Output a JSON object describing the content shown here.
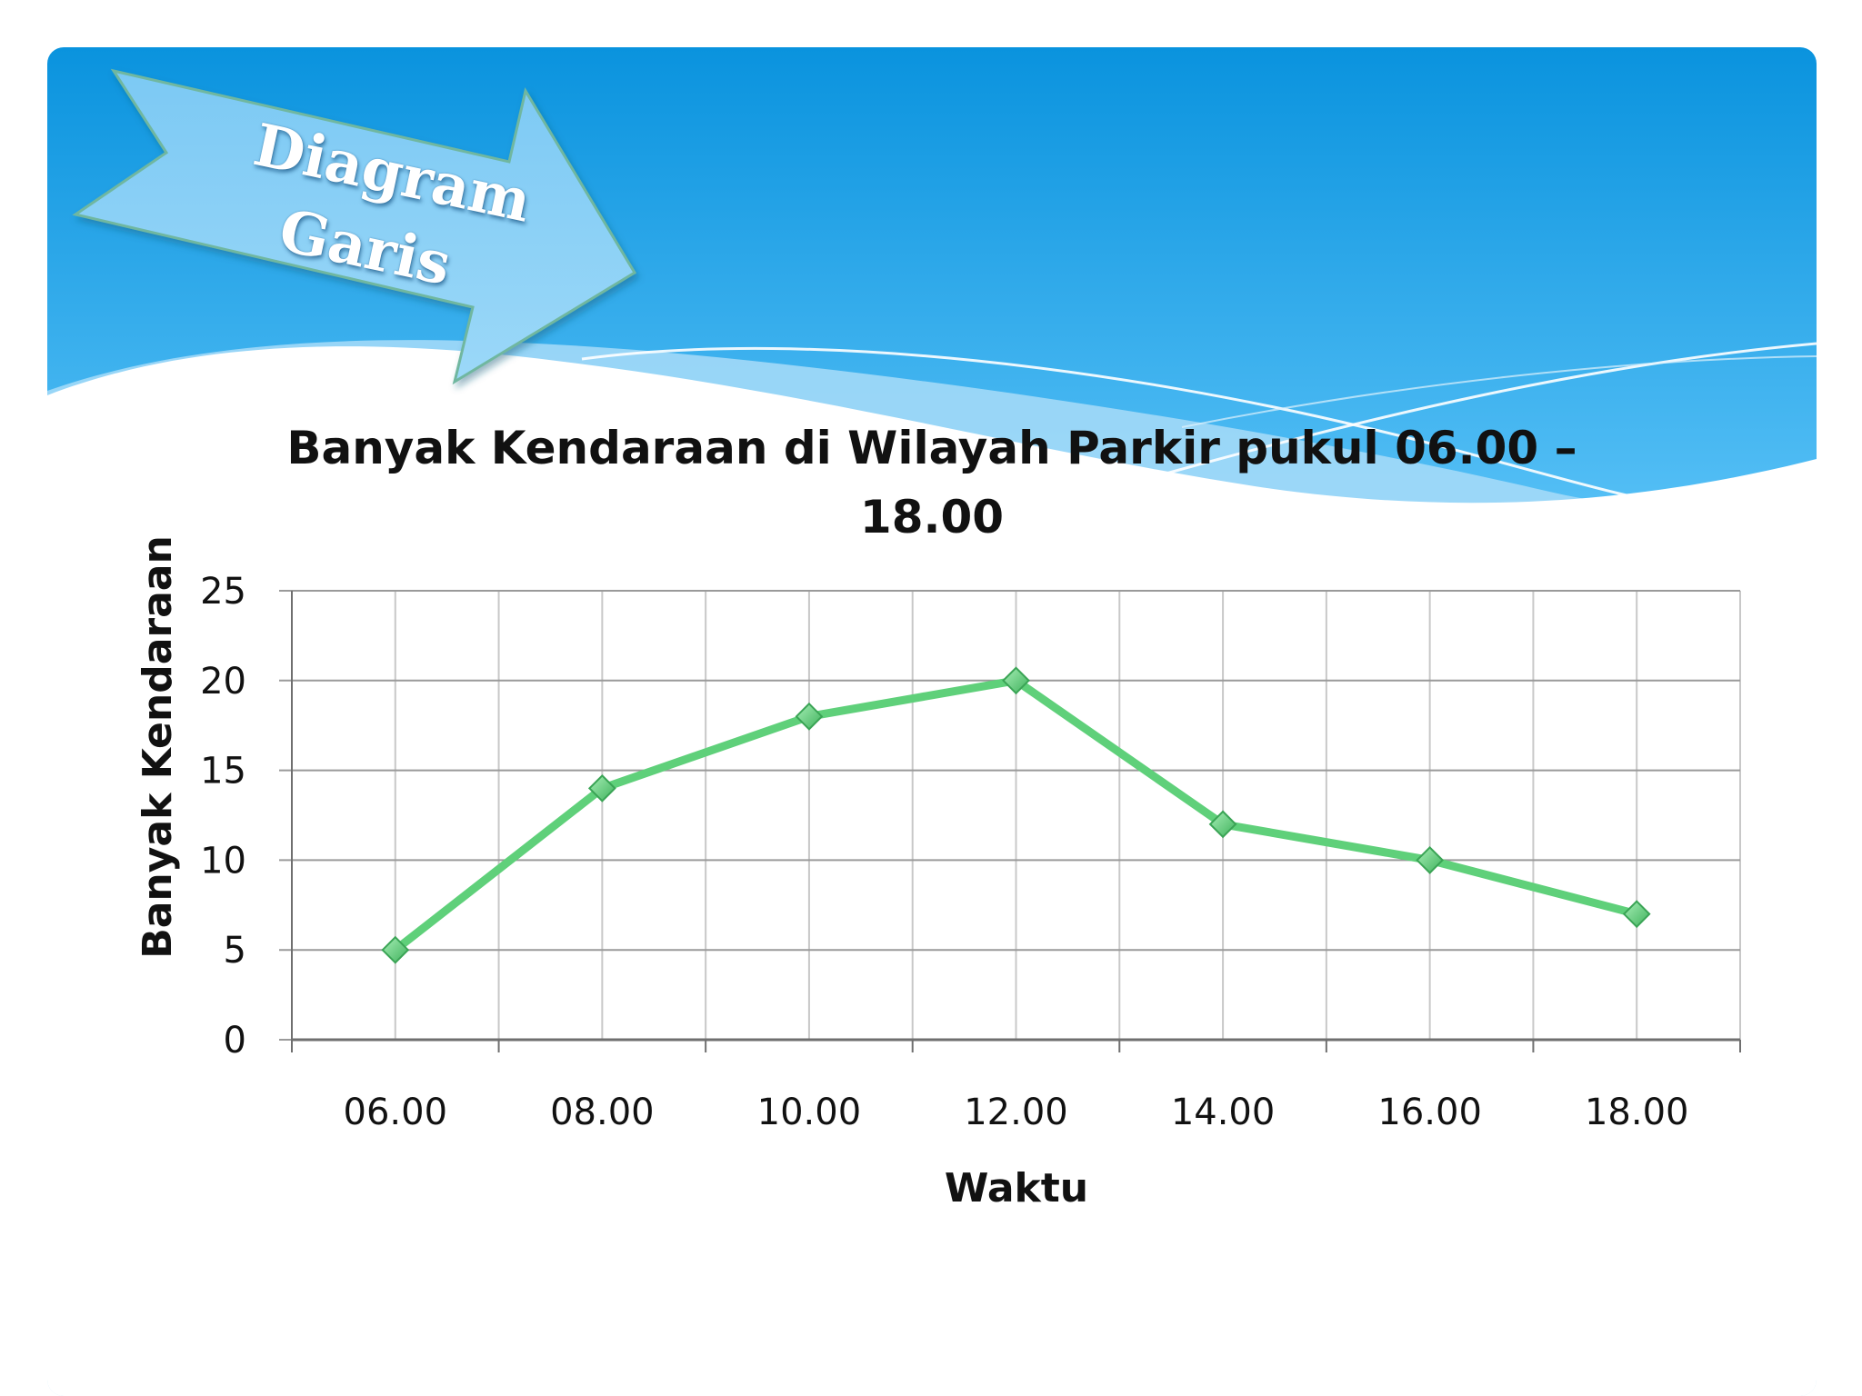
{
  "banner": {
    "line1": "Diagram",
    "line2": "Garis",
    "colors": {
      "sky_top": "#0a96e0",
      "sky_bottom": "#5cc2f5",
      "arrow_fill": "#84cdf6",
      "arrow_edge": "#5fb0a0"
    }
  },
  "chart_data": {
    "type": "line",
    "title": "Banyak Kendaraan di Wilayah Parkir pukul 06.00 – 18.00",
    "xlabel": "Waktu",
    "ylabel": "Banyak Kendaraan",
    "categories": [
      "06.00",
      "08.00",
      "10.00",
      "12.00",
      "14.00",
      "16.00",
      "18.00"
    ],
    "series": [
      {
        "values": [
          5,
          14,
          18,
          20,
          12,
          10,
          7
        ],
        "color": "#5fd07a"
      }
    ],
    "ylim": [
      0,
      25
    ],
    "yticks": [
      "0",
      "5",
      "10",
      "15",
      "20",
      "25"
    ],
    "grid": true,
    "marker": "diamond"
  }
}
